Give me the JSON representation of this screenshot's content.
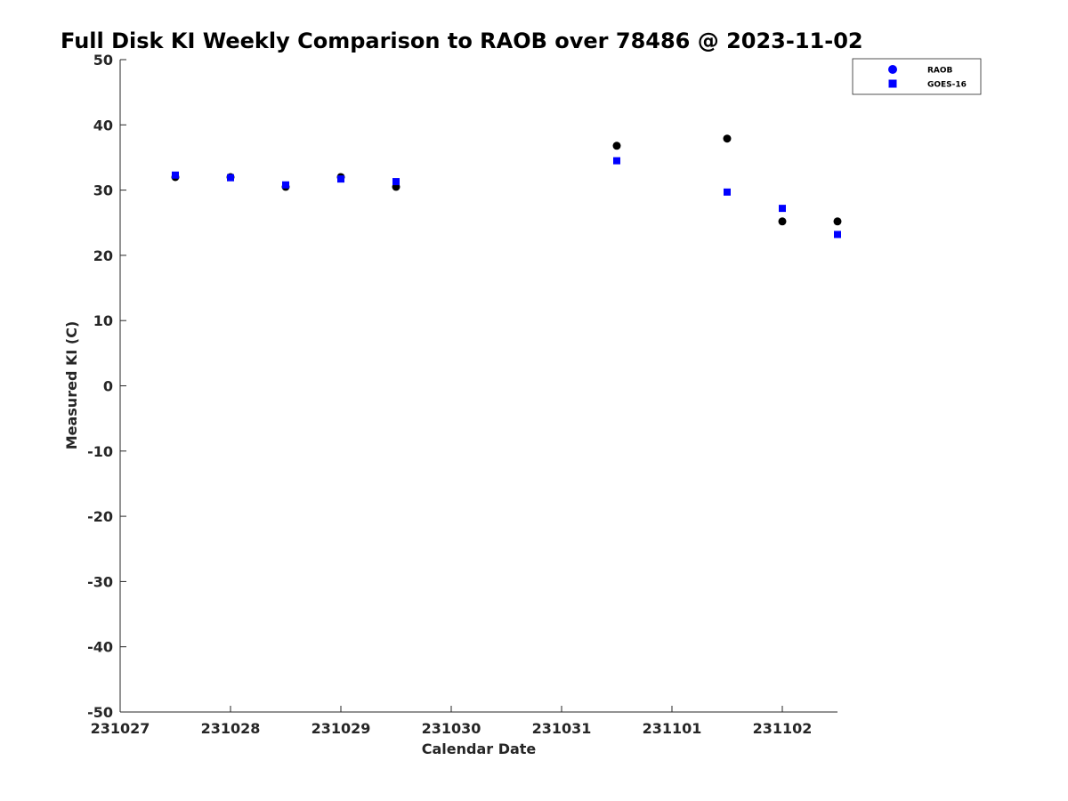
{
  "chart_data": {
    "type": "scatter",
    "title": "Full Disk KI Weekly Comparison to RAOB over 78486 @ 2023-11-02",
    "xlabel": "Calendar Date",
    "ylabel": "Measured KI (C)",
    "xlim": [
      "2023-10-27",
      "2023-11-02T12:00"
    ],
    "ylim": [
      -50,
      50
    ],
    "x_ticks": [
      {
        "value": "2023-10-27",
        "label": "231027"
      },
      {
        "value": "2023-10-28",
        "label": "231028"
      },
      {
        "value": "2023-10-29",
        "label": "231029"
      },
      {
        "value": "2023-10-30",
        "label": "231030"
      },
      {
        "value": "2023-10-31",
        "label": "231031"
      },
      {
        "value": "2023-11-01",
        "label": "231101"
      },
      {
        "value": "2023-11-02",
        "label": "231102"
      }
    ],
    "y_ticks": [
      "50",
      "40",
      "30",
      "20",
      "10",
      "0",
      "-10",
      "-20",
      "-30",
      "-40",
      "-50"
    ],
    "grid": false,
    "legend_position": "top-right",
    "series": [
      {
        "name": "RAOB",
        "marker": "circle",
        "legend_color": "#0000ff",
        "color": "#000000",
        "points": [
          {
            "x": "2023-10-27T12:00",
            "y": 32.0
          },
          {
            "x": "2023-10-28T00:00",
            "y": 32.0
          },
          {
            "x": "2023-10-28T12:00",
            "y": 30.5
          },
          {
            "x": "2023-10-29T00:00",
            "y": 32.0
          },
          {
            "x": "2023-10-29T12:00",
            "y": 30.5
          },
          {
            "x": "2023-10-31T12:00",
            "y": 36.8
          },
          {
            "x": "2023-11-01T12:00",
            "y": 37.9
          },
          {
            "x": "2023-11-02T00:00",
            "y": 25.2
          },
          {
            "x": "2023-11-02T12:00",
            "y": 25.2
          }
        ]
      },
      {
        "name": "GOES-16",
        "marker": "square",
        "legend_color": "#0000ff",
        "color": "#0000ff",
        "points": [
          {
            "x": "2023-10-27T12:00",
            "y": 32.3
          },
          {
            "x": "2023-10-28T00:00",
            "y": 31.9
          },
          {
            "x": "2023-10-28T12:00",
            "y": 30.8
          },
          {
            "x": "2023-10-29T00:00",
            "y": 31.7
          },
          {
            "x": "2023-10-29T12:00",
            "y": 31.3
          },
          {
            "x": "2023-10-31T12:00",
            "y": 34.5
          },
          {
            "x": "2023-11-01T12:00",
            "y": 29.7
          },
          {
            "x": "2023-11-02T00:00",
            "y": 27.2
          },
          {
            "x": "2023-11-02T12:00",
            "y": 23.2
          }
        ]
      }
    ]
  }
}
